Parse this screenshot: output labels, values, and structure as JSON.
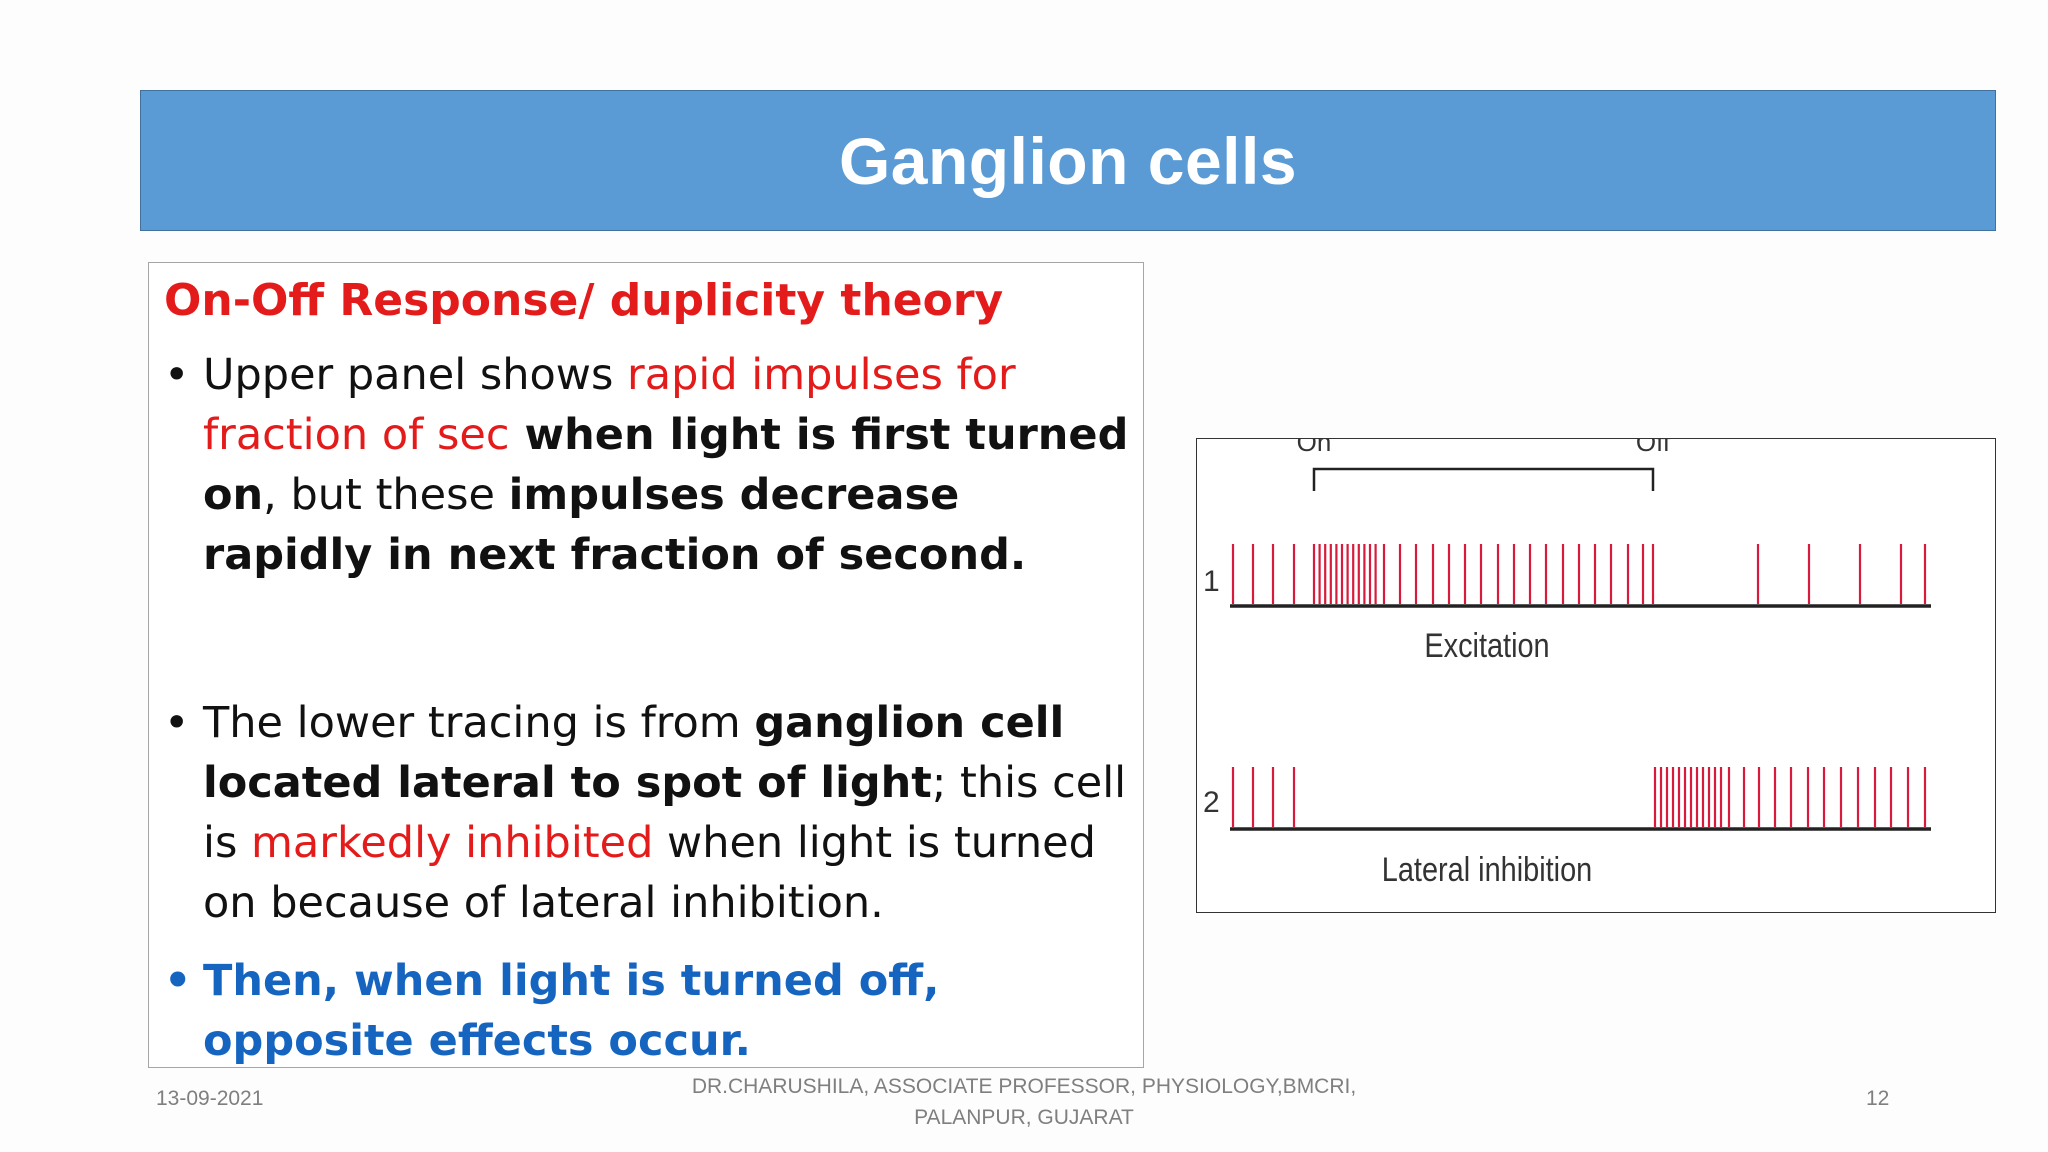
{
  "title": "Ganglion cells",
  "text_box": {
    "heading": "On-Off Response/ duplicity theory",
    "bullets": [
      {
        "runs": [
          {
            "text": "Upper panel shows ",
            "style": "normal"
          },
          {
            "text": "rapid impulses for fraction of sec",
            "style": "red"
          },
          {
            "text": " when light is first turned on",
            "style": "bold"
          },
          {
            "text": ", but these ",
            "style": "normal"
          },
          {
            "text": "impulses decrease rapidly in next fraction of second.",
            "style": "bold"
          }
        ]
      },
      {
        "runs": [
          {
            "text": "The lower tracing is from  ",
            "style": "normal"
          },
          {
            "text": "ganglion cell located lateral to spot of light",
            "style": "bold"
          },
          {
            "text": "; this cell is ",
            "style": "normal"
          },
          {
            "text": "markedly inhibited",
            "style": "red"
          },
          {
            "text": " when light is turned on because of lateral inhibition.",
            "style": "normal"
          }
        ]
      },
      {
        "runs": [
          {
            "text": "Then, when light is turned off, opposite effects occur.",
            "style": "blue"
          }
        ]
      }
    ]
  },
  "figure": {
    "label_on": "On",
    "label_off": "Off",
    "trace_1_number": "1",
    "trace_1_label": "Excitation",
    "trace_2_number": "2",
    "trace_2_label": "Lateral inhibition",
    "spike_color": "#d81b3c"
  },
  "footer": {
    "date": "13-09-2021",
    "author_line1": "DR.CHARUSHILA, ASSOCIATE PROFESSOR, PHYSIOLOGY,BMCRI,",
    "author_line2": "PALANPUR, GUJARAT",
    "page_number": "12"
  },
  "colors": {
    "title_bar": "#5b9bd5",
    "heading_red": "#e31b1b",
    "blue_text": "#1565c0"
  }
}
